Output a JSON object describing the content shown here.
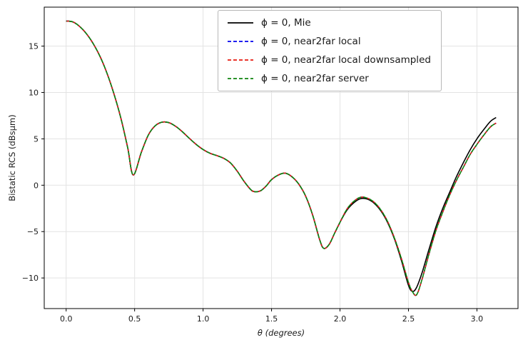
{
  "chart_data": {
    "type": "line",
    "title": "",
    "xlabel": "θ (degrees)",
    "ylabel": "Bistatic RCS (dBsμm)",
    "xlim": [
      -0.16,
      3.3
    ],
    "ylim": [
      -13.3,
      19.2
    ],
    "xtick_vals": [
      0.0,
      0.5,
      1.0,
      1.5,
      2.0,
      2.5,
      3.0
    ],
    "xtick_labels": [
      "0.0",
      "0.5",
      "1.0",
      "1.5",
      "2.0",
      "2.5",
      "3.0"
    ],
    "ytick_vals": [
      -10,
      -5,
      0,
      5,
      10,
      15
    ],
    "ytick_labels": [
      "−10",
      "−5",
      "0",
      "5",
      "10",
      "15"
    ],
    "grid": true,
    "grid_color": "#e3e3e3",
    "legend_position": "upper center-right",
    "x": [
      0.0,
      0.05,
      0.1,
      0.15,
      0.2,
      0.25,
      0.3,
      0.35,
      0.4,
      0.45,
      0.49,
      0.55,
      0.6,
      0.65,
      0.7,
      0.75,
      0.8,
      0.85,
      0.9,
      0.95,
      1.0,
      1.05,
      1.1,
      1.15,
      1.2,
      1.25,
      1.3,
      1.35,
      1.38,
      1.42,
      1.46,
      1.5,
      1.55,
      1.6,
      1.65,
      1.7,
      1.75,
      1.8,
      1.85,
      1.88,
      1.92,
      1.96,
      2.0,
      2.05,
      2.1,
      2.15,
      2.2,
      2.25,
      2.3,
      2.35,
      2.4,
      2.45,
      2.5,
      2.53,
      2.56,
      2.6,
      2.65,
      2.7,
      2.75,
      2.8,
      2.85,
      2.9,
      2.95,
      3.0,
      3.05,
      3.1,
      3.14
    ],
    "series": [
      {
        "name": "ϕ = 0, Mie",
        "color": "#000000",
        "dash": null,
        "dashoffset": 0,
        "values": [
          17.7,
          17.6,
          17.1,
          16.3,
          15.2,
          13.8,
          12.0,
          9.8,
          7.2,
          4.0,
          1.1,
          3.6,
          5.4,
          6.4,
          6.8,
          6.75,
          6.35,
          5.75,
          5.05,
          4.4,
          3.85,
          3.45,
          3.2,
          2.9,
          2.4,
          1.5,
          0.4,
          -0.5,
          -0.7,
          -0.6,
          -0.1,
          0.6,
          1.1,
          1.3,
          0.9,
          0.1,
          -1.2,
          -3.2,
          -5.8,
          -6.8,
          -6.4,
          -5.2,
          -4.0,
          -2.7,
          -1.9,
          -1.45,
          -1.5,
          -1.95,
          -2.8,
          -4.1,
          -5.9,
          -8.2,
          -10.8,
          -11.45,
          -11.0,
          -9.4,
          -6.9,
          -4.5,
          -2.5,
          -0.8,
          0.9,
          2.4,
          3.8,
          5.0,
          6.0,
          6.9,
          7.3
        ]
      },
      {
        "name": "ϕ = 0, near2far local",
        "color": "#0000ee",
        "dash": "6 3",
        "dashoffset": 0,
        "values": [
          17.7,
          17.6,
          17.1,
          16.3,
          15.2,
          13.8,
          12.0,
          9.8,
          7.2,
          4.0,
          1.1,
          3.6,
          5.4,
          6.4,
          6.8,
          6.75,
          6.35,
          5.75,
          5.05,
          4.4,
          3.85,
          3.45,
          3.2,
          2.9,
          2.4,
          1.5,
          0.4,
          -0.5,
          -0.7,
          -0.6,
          -0.1,
          0.6,
          1.1,
          1.3,
          0.9,
          0.1,
          -1.2,
          -3.2,
          -5.8,
          -6.8,
          -6.4,
          -5.2,
          -4.0,
          -2.6,
          -1.75,
          -1.3,
          -1.4,
          -1.85,
          -2.7,
          -4.0,
          -5.8,
          -8.0,
          -10.5,
          -11.5,
          -11.8,
          -10.1,
          -7.4,
          -4.9,
          -2.9,
          -1.1,
          0.5,
          1.9,
          3.3,
          4.4,
          5.4,
          6.3,
          6.7
        ]
      },
      {
        "name": "ϕ = 0, near2far local downsampled",
        "color": "#e8190f",
        "dash": "6 3",
        "dashoffset": 0,
        "values": [
          17.7,
          17.6,
          17.1,
          16.3,
          15.2,
          13.8,
          12.0,
          9.8,
          7.2,
          4.0,
          1.1,
          3.6,
          5.4,
          6.4,
          6.8,
          6.75,
          6.35,
          5.75,
          5.05,
          4.4,
          3.85,
          3.45,
          3.2,
          2.9,
          2.4,
          1.5,
          0.4,
          -0.5,
          -0.7,
          -0.6,
          -0.1,
          0.6,
          1.1,
          1.3,
          0.9,
          0.1,
          -1.2,
          -3.2,
          -5.8,
          -6.8,
          -6.4,
          -5.2,
          -4.0,
          -2.6,
          -1.75,
          -1.3,
          -1.4,
          -1.85,
          -2.7,
          -4.0,
          -5.8,
          -8.0,
          -10.5,
          -11.5,
          -11.8,
          -10.1,
          -7.4,
          -4.9,
          -2.9,
          -1.1,
          0.5,
          1.9,
          3.3,
          4.4,
          5.4,
          6.3,
          6.7
        ]
      },
      {
        "name": "ϕ = 0, near2far server",
        "color": "#0f840f",
        "dash": "6 3",
        "dashoffset": 5,
        "values": [
          17.7,
          17.6,
          17.1,
          16.3,
          15.2,
          13.8,
          12.0,
          9.8,
          7.2,
          4.0,
          1.1,
          3.6,
          5.4,
          6.4,
          6.8,
          6.75,
          6.35,
          5.75,
          5.05,
          4.4,
          3.85,
          3.45,
          3.2,
          2.9,
          2.4,
          1.5,
          0.4,
          -0.5,
          -0.7,
          -0.6,
          -0.1,
          0.6,
          1.1,
          1.3,
          0.9,
          0.1,
          -1.2,
          -3.2,
          -5.8,
          -6.8,
          -6.4,
          -5.2,
          -4.0,
          -2.6,
          -1.75,
          -1.3,
          -1.4,
          -1.85,
          -2.7,
          -4.0,
          -5.8,
          -8.0,
          -10.5,
          -11.5,
          -11.8,
          -10.1,
          -7.4,
          -4.9,
          -2.9,
          -1.1,
          0.5,
          1.9,
          3.3,
          4.4,
          5.4,
          6.3,
          6.7
        ]
      }
    ]
  }
}
